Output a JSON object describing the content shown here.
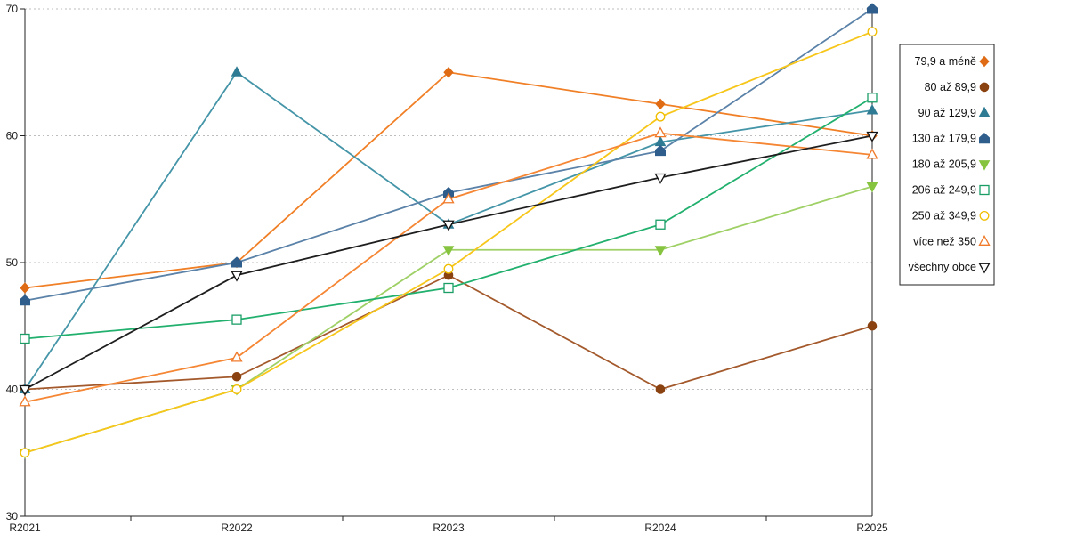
{
  "chart_data": {
    "type": "line",
    "categories": [
      "R2021",
      "R2022",
      "R2023",
      "R2024",
      "R2025"
    ],
    "ylim": [
      30,
      70
    ],
    "yticks": [
      30,
      40,
      50,
      60,
      70
    ],
    "grid": true,
    "legend": "right",
    "series": [
      {
        "name": "79,9 a méně",
        "values": [
          48,
          50,
          65,
          62.5,
          60
        ],
        "color": "#f07f26",
        "marker": "diamond",
        "marker_color": "#df6b14"
      },
      {
        "name": "80 až 89,9",
        "values": [
          40,
          41,
          49,
          40,
          45
        ],
        "color": "#a3592b",
        "marker": "circle",
        "marker_color": "#8a4210"
      },
      {
        "name": "90 až 129,9",
        "values": [
          40,
          65,
          53,
          59.5,
          62
        ],
        "color": "#4595a8",
        "marker": "triangle",
        "marker_color": "#2e7b93"
      },
      {
        "name": "130 až 179,9",
        "values": [
          47,
          50,
          55.5,
          58.8,
          70
        ],
        "color": "#5b82a8",
        "marker": "pentagon",
        "marker_color": "#2f5e8c"
      },
      {
        "name": "180 až 205,9",
        "values": [
          35,
          40,
          51,
          51,
          56
        ],
        "color": "#9fd066",
        "marker": "triangle-down",
        "marker_color": "#86c440"
      },
      {
        "name": "206 až 249,9",
        "values": [
          44,
          45.5,
          48,
          53,
          63
        ],
        "color": "#22b06e",
        "marker": "square-open",
        "marker_color": "#1a9e66"
      },
      {
        "name": "250 až 349,9",
        "values": [
          35,
          40,
          49.5,
          61.5,
          68.2
        ],
        "color": "#f7c61a",
        "marker": "circle-open",
        "marker_color": "#f0be00"
      },
      {
        "name": "více než 350",
        "values": [
          39,
          42.5,
          55,
          60.2,
          58.5
        ],
        "color": "#f58634",
        "marker": "triangle-open",
        "marker_color": "#f07a2a"
      },
      {
        "name": "všechny obce",
        "values": [
          40,
          49,
          53,
          56.7,
          60
        ],
        "color": "#1e1e1e",
        "marker": "triangle-down-open",
        "marker_color": "#111111"
      }
    ]
  }
}
